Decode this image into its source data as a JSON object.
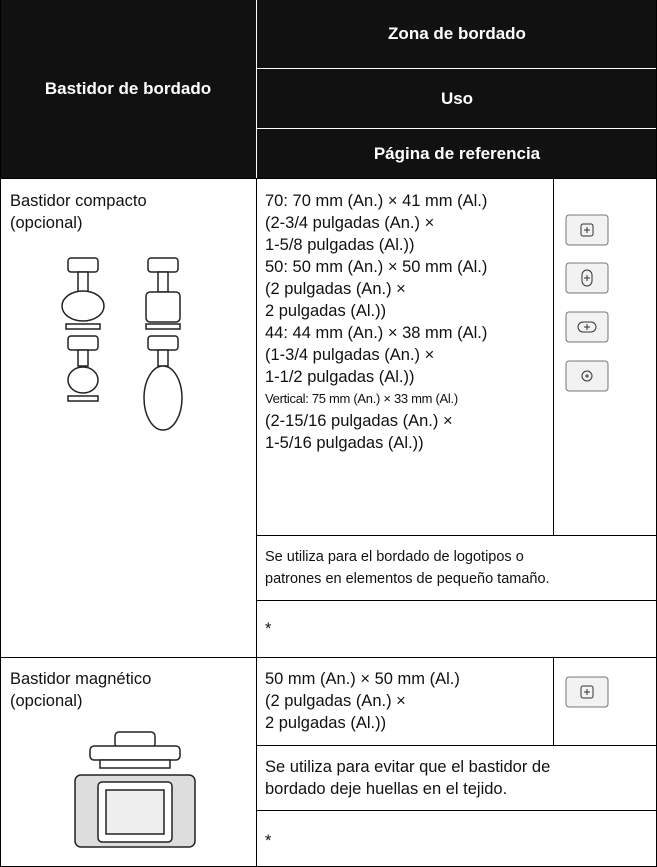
{
  "header": {
    "frame": "Bastidor de bordado",
    "area": "Zona de bordado",
    "use": "Uso",
    "reference": "Página de referencia"
  },
  "rows": [
    {
      "name": [
        "Bastidor compacto",
        "(opcional)"
      ],
      "area": [
        "70: 70 mm (An.) × 41 mm (Al.)",
        "(2-3/4 pulgadas (An.) ×",
        "1-5/8 pulgadas (Al.))",
        "50: 50 mm (An.) × 50 mm (Al.)",
        "(2 pulgadas (An.) ×",
        "2 pulgadas (Al.))",
        "44: 44 mm (An.) × 38 mm (Al.)",
        "(1-3/4 pulgadas (An.) ×",
        "1-1/2 pulgadas (Al.))",
        "Vertical: 75 mm (An.) × 33 mm (Al.)",
        "(2-15/16 pulgadas (An.) ×",
        "1-5/16 pulgadas (Al.))"
      ],
      "use": [
        "Se utiliza para el bordado de logotipos o",
        "patrones en elementos de pequeño tamaño."
      ],
      "reference": "*"
    },
    {
      "name": [
        "Bastidor magnético",
        "(opcional)"
      ],
      "area": [
        "50 mm (An.) × 50 mm (Al.)",
        "(2 pulgadas (An.) ×",
        "2 pulgadas (Al.))"
      ],
      "use": [
        "Se utiliza para evitar que el bastidor de",
        "bordado deje huellas en el tejido."
      ],
      "reference": "*"
    }
  ]
}
